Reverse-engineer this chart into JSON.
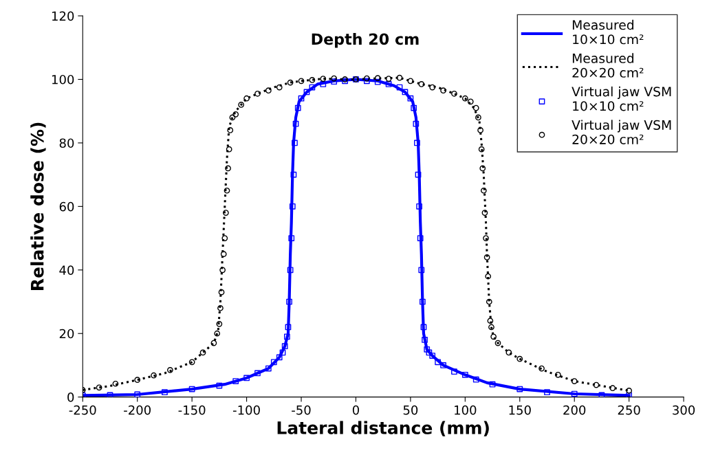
{
  "chart_data": {
    "type": "line",
    "title": "Depth 20 cm",
    "xlabel": "Lateral distance (mm)",
    "ylabel": "Relative dose (%)",
    "xlim": [
      -250,
      300
    ],
    "xticks": [
      -250,
      -200,
      -150,
      -100,
      -50,
      0,
      50,
      100,
      150,
      200,
      250,
      300
    ],
    "ylim": [
      0,
      120
    ],
    "yticks": [
      0,
      20,
      40,
      60,
      80,
      100,
      120
    ],
    "grid": false,
    "legend": "top right",
    "series": [
      {
        "name": "Measured\n10×10 cm²",
        "line_style": "solid",
        "marker": "none",
        "color": "#0000ff",
        "x": [
          -250,
          -200,
          -150,
          -120,
          -100,
          -90,
          -80,
          -70,
          -65,
          -62,
          -61,
          -60,
          -59,
          -58,
          -57,
          -55,
          -52,
          -45,
          -35,
          -20,
          0,
          20,
          35,
          45,
          52,
          55,
          57,
          58,
          59,
          60,
          61,
          62,
          65,
          70,
          80,
          100,
          120,
          150,
          200,
          250
        ],
        "values": [
          0.5,
          0.8,
          2.5,
          4,
          6,
          7.5,
          9,
          12.5,
          16,
          20,
          30,
          45,
          55,
          70,
          80,
          88,
          93,
          96,
          98.5,
          99.5,
          100,
          99.5,
          98,
          96,
          93,
          88,
          80,
          70,
          55,
          45,
          30,
          20,
          15,
          13,
          10,
          7,
          4.5,
          2.5,
          1,
          0.5
        ]
      },
      {
        "name": "Measured\n20×20 cm²",
        "line_style": "dotted",
        "marker": "none",
        "color": "#000000",
        "x": [
          -250,
          -225,
          -200,
          -175,
          -150,
          -140,
          -130,
          -126,
          -124,
          -122,
          -120,
          -118,
          -116,
          -113,
          -110,
          -100,
          -90,
          -75,
          -60,
          -50,
          -30,
          -10,
          0,
          20,
          40,
          50,
          60,
          75,
          90,
          100,
          108,
          113,
          115,
          117,
          119,
          120,
          122,
          124,
          126,
          130,
          140,
          150,
          175,
          200,
          225,
          250
        ],
        "values": [
          2.2,
          3.5,
          5.4,
          7.5,
          11,
          14,
          17,
          21,
          30,
          45,
          60,
          75,
          85,
          88,
          90,
          94,
          95.5,
          97.5,
          99,
          99.5,
          100.2,
          100,
          100,
          100.3,
          100.5,
          99.5,
          98.5,
          97.5,
          95.5,
          94,
          91,
          87,
          80,
          70,
          55,
          45,
          30,
          22,
          19,
          17,
          14,
          12,
          8,
          5,
          3.5,
          2
        ]
      },
      {
        "name": "Virtual jaw VSM\n10×10 cm²",
        "type": "scatter",
        "marker": "square",
        "color": "#0000ff",
        "x": [
          -250,
          -225,
          -200,
          -175,
          -150,
          -125,
          -110,
          -100,
          -90,
          -80,
          -75,
          -70,
          -67,
          -65,
          -63,
          -62,
          -61,
          -60,
          -59,
          -58,
          -57,
          -56,
          -55,
          -53,
          -50,
          -45,
          -40,
          -30,
          -20,
          -10,
          0,
          10,
          20,
          30,
          40,
          45,
          50,
          53,
          55,
          56,
          57,
          58,
          59,
          60,
          61,
          62,
          63,
          65,
          67,
          70,
          75,
          80,
          90,
          100,
          110,
          125,
          150,
          175,
          200,
          225,
          250
        ],
        "values": [
          0.5,
          0.6,
          0.8,
          1.5,
          2.5,
          3.6,
          5,
          6,
          7.5,
          9,
          11,
          12.5,
          14,
          16,
          19,
          22,
          30,
          40,
          50,
          60,
          70,
          80,
          86,
          91,
          94,
          96,
          97.5,
          98.5,
          99.3,
          99.5,
          100,
          99.5,
          99.2,
          98.5,
          97.5,
          96,
          94,
          91,
          86,
          80,
          70,
          60,
          50,
          40,
          30,
          22,
          18,
          15,
          14,
          13,
          11,
          10,
          8,
          7,
          5.5,
          4,
          2.5,
          1.5,
          1,
          0.6,
          0.5
        ]
      },
      {
        "name": "Virtual jaw VSM\n20×20 cm²",
        "type": "scatter",
        "marker": "circle",
        "color": "#000000",
        "x": [
          -250,
          -235,
          -220,
          -200,
          -185,
          -170,
          -150,
          -140,
          -130,
          -127,
          -125,
          -124,
          -123,
          -122,
          -121,
          -120,
          -119,
          -118,
          -117,
          -116,
          -115,
          -113,
          -110,
          -105,
          -100,
          -90,
          -80,
          -70,
          -60,
          -50,
          -40,
          -30,
          -20,
          -10,
          0,
          10,
          20,
          30,
          40,
          50,
          60,
          70,
          80,
          90,
          100,
          105,
          110,
          112,
          114,
          115,
          116,
          117,
          118,
          119,
          120,
          121,
          122,
          123,
          124,
          126,
          130,
          140,
          150,
          170,
          185,
          200,
          220,
          235,
          250
        ],
        "values": [
          2.2,
          3,
          4.2,
          5.4,
          6.8,
          8.5,
          11,
          14,
          17,
          20,
          23,
          28,
          33,
          40,
          45,
          50,
          58,
          65,
          72,
          78,
          84,
          88,
          89,
          92,
          94,
          95.5,
          96.5,
          97.5,
          99,
          99.5,
          99.8,
          100.2,
          100.3,
          100,
          100,
          100.3,
          100.4,
          100.2,
          100.5,
          99.5,
          98.5,
          97.5,
          96.5,
          95.5,
          94,
          93,
          91,
          88,
          84,
          78,
          72,
          65,
          58,
          50,
          44,
          38,
          30,
          24,
          22,
          19,
          17,
          14,
          12,
          9,
          7,
          5,
          3.8,
          2.8,
          2
        ]
      }
    ]
  }
}
